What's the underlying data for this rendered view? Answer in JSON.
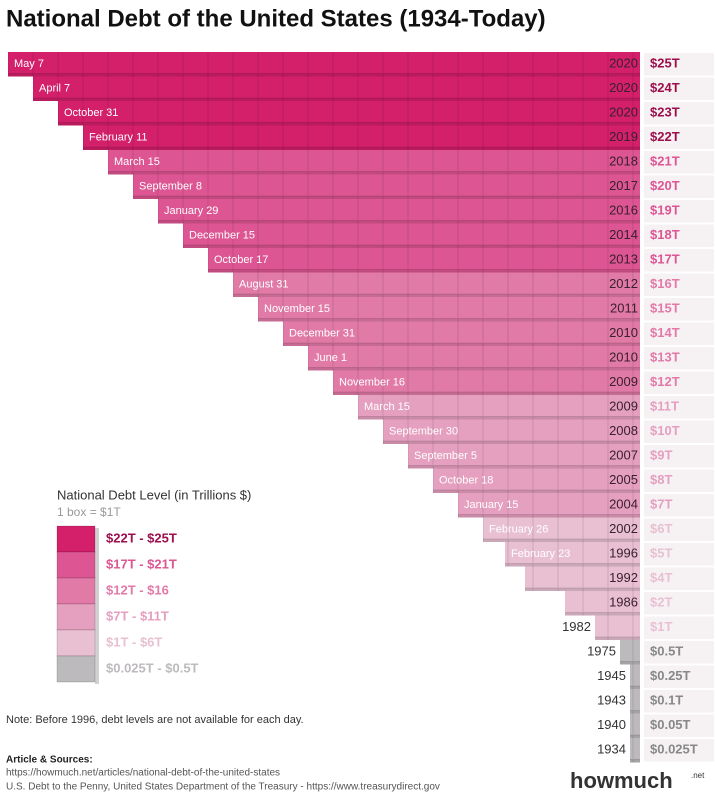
{
  "title": "National Debt of the United States (1934-Today)",
  "rows": [
    {
      "date": "May 7",
      "year": "2020",
      "amount": "$25T"
    },
    {
      "date": "April 7",
      "year": "2020",
      "amount": "$24T"
    },
    {
      "date": "October 31",
      "year": "2020",
      "amount": "$23T"
    },
    {
      "date": "February 11",
      "year": "2019",
      "amount": "$22T"
    },
    {
      "date": "March 15",
      "year": "2018",
      "amount": "$21T"
    },
    {
      "date": "September 8",
      "year": "2017",
      "amount": "$20T"
    },
    {
      "date": "January 29",
      "year": "2016",
      "amount": "$19T"
    },
    {
      "date": "December 15",
      "year": "2014",
      "amount": "$18T"
    },
    {
      "date": "October 17",
      "year": "2013",
      "amount": "$17T"
    },
    {
      "date": "August 31",
      "year": "2012",
      "amount": "$16T"
    },
    {
      "date": "November 15",
      "year": "2011",
      "amount": "$15T"
    },
    {
      "date": "December 31",
      "year": "2010",
      "amount": "$14T"
    },
    {
      "date": "June 1",
      "year": "2010",
      "amount": "$13T"
    },
    {
      "date": "November 16",
      "year": "2009",
      "amount": "$12T"
    },
    {
      "date": "March 15",
      "year": "2009",
      "amount": "$11T"
    },
    {
      "date": "September 30",
      "year": "2008",
      "amount": "$10T"
    },
    {
      "date": "September 5",
      "year": "2007",
      "amount": "$9T"
    },
    {
      "date": "October 18",
      "year": "2005",
      "amount": "$8T"
    },
    {
      "date": "January 15",
      "year": "2004",
      "amount": "$7T"
    },
    {
      "date": "February 26",
      "year": "2002",
      "amount": "$6T"
    },
    {
      "date": "February 23",
      "year": "1996",
      "amount": "$5T"
    },
    {
      "year": "1992",
      "amount": "$4T"
    },
    {
      "year": "1986",
      "amount": "$2T"
    },
    {
      "year": "1982",
      "amount": "$1T"
    },
    {
      "year": "1975",
      "amount": "$0.5T"
    },
    {
      "year": "1945",
      "amount": "$0.25T"
    },
    {
      "year": "1943",
      "amount": "$0.1T"
    },
    {
      "year": "1940",
      "amount": "$0.05T"
    },
    {
      "year": "1934",
      "amount": "$0.025T"
    }
  ],
  "legend": {
    "title": "National Debt Level (in Trillions $)",
    "subtitle": "1 box = $1T",
    "items": [
      {
        "label": "$22T - $25T",
        "color": "#d41f6b"
      },
      {
        "label": "$17T - $21T",
        "color": "#dd5592"
      },
      {
        "label": "$12T - $16",
        "color": "#e27aa8"
      },
      {
        "label": "$7T - $11T",
        "color": "#e59fbf"
      },
      {
        "label": "$1T - $6T",
        "color": "#e8c0d2"
      },
      {
        "label": "$0.025T - $0.5T",
        "color": "#bdbabd"
      }
    ]
  },
  "note": "Note: Before 1996, debt levels are not available for each day.",
  "sources": {
    "heading": "Article & Sources:",
    "lines": [
      "https://howmuch.net/articles/national-debt-of-the-united-states",
      "U.S. Debt to the Penny, United States Department of the Treasury - https://www.treasurydirect.gov"
    ]
  },
  "logo": {
    "main": "howmuch",
    "suffix": ".net"
  }
}
